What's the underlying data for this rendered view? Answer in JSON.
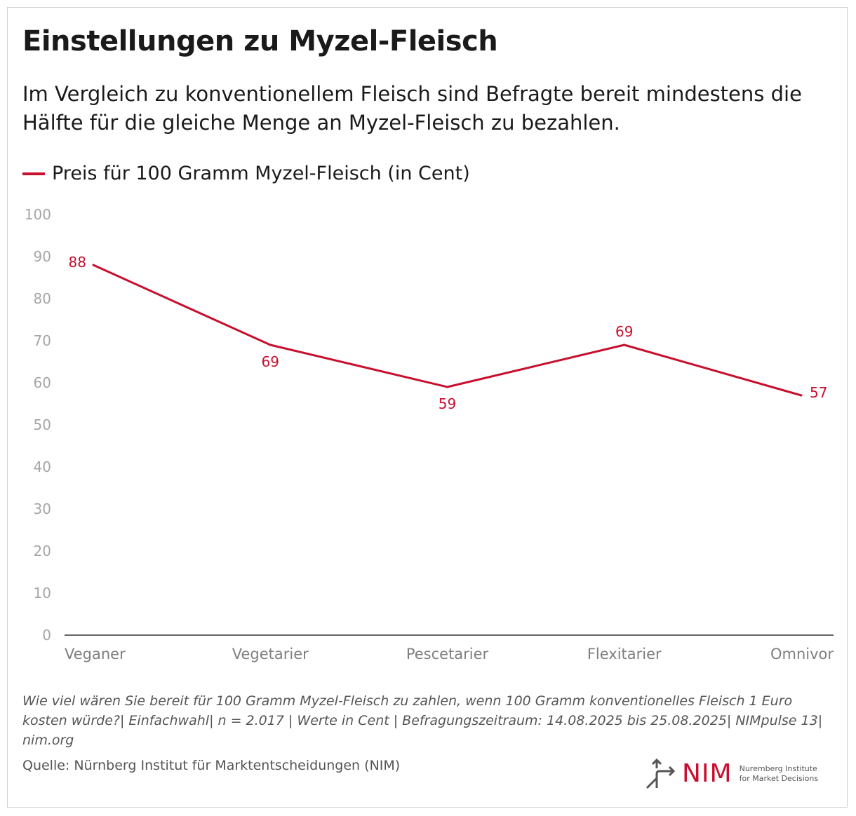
{
  "header": {
    "title": "Einstellungen zu Myzel-Fleisch",
    "subtitle": "Im Vergleich zu konventionellem Fleisch sind Befragte bereit mindestens die Hälfte für die gleiche Menge an Myzel-Fleisch zu bezahlen."
  },
  "chart_data": {
    "type": "line",
    "categories": [
      "Veganer",
      "Vegetarier",
      "Pescetarier",
      "Flexitarier",
      "Omnivor"
    ],
    "series": [
      {
        "name": "Preis für 100 Gramm Myzel-Fleisch (in Cent)",
        "values": [
          88,
          69,
          59,
          69,
          57
        ],
        "color": "#c8102e"
      }
    ],
    "yticks": [
      "0",
      "10",
      "20",
      "30",
      "40",
      "50",
      "60",
      "70",
      "80",
      "90",
      "100"
    ],
    "ylim": [
      0,
      100
    ],
    "legend_position": "top-left",
    "grid": false
  },
  "footer": {
    "note": "Wie viel wären Sie bereit für 100 Gramm Myzel-Fleisch zu zahlen, wenn 100 Gramm konventionelles Fleisch 1 Euro kosten würde?| Einfachwahl| n = 2.017 | Werte in Cent | Befragungszeitraum: 14.08.2025 bis 25.08.2025| NIMpulse 13| nim.org",
    "source": "Quelle: Nürnberg Institut für Marktentscheidungen (NIM)"
  },
  "logo": {
    "name": "NIM",
    "line1": "Nuremberg Institute",
    "line2": "for Market Decisions",
    "color": "#c8102e"
  }
}
